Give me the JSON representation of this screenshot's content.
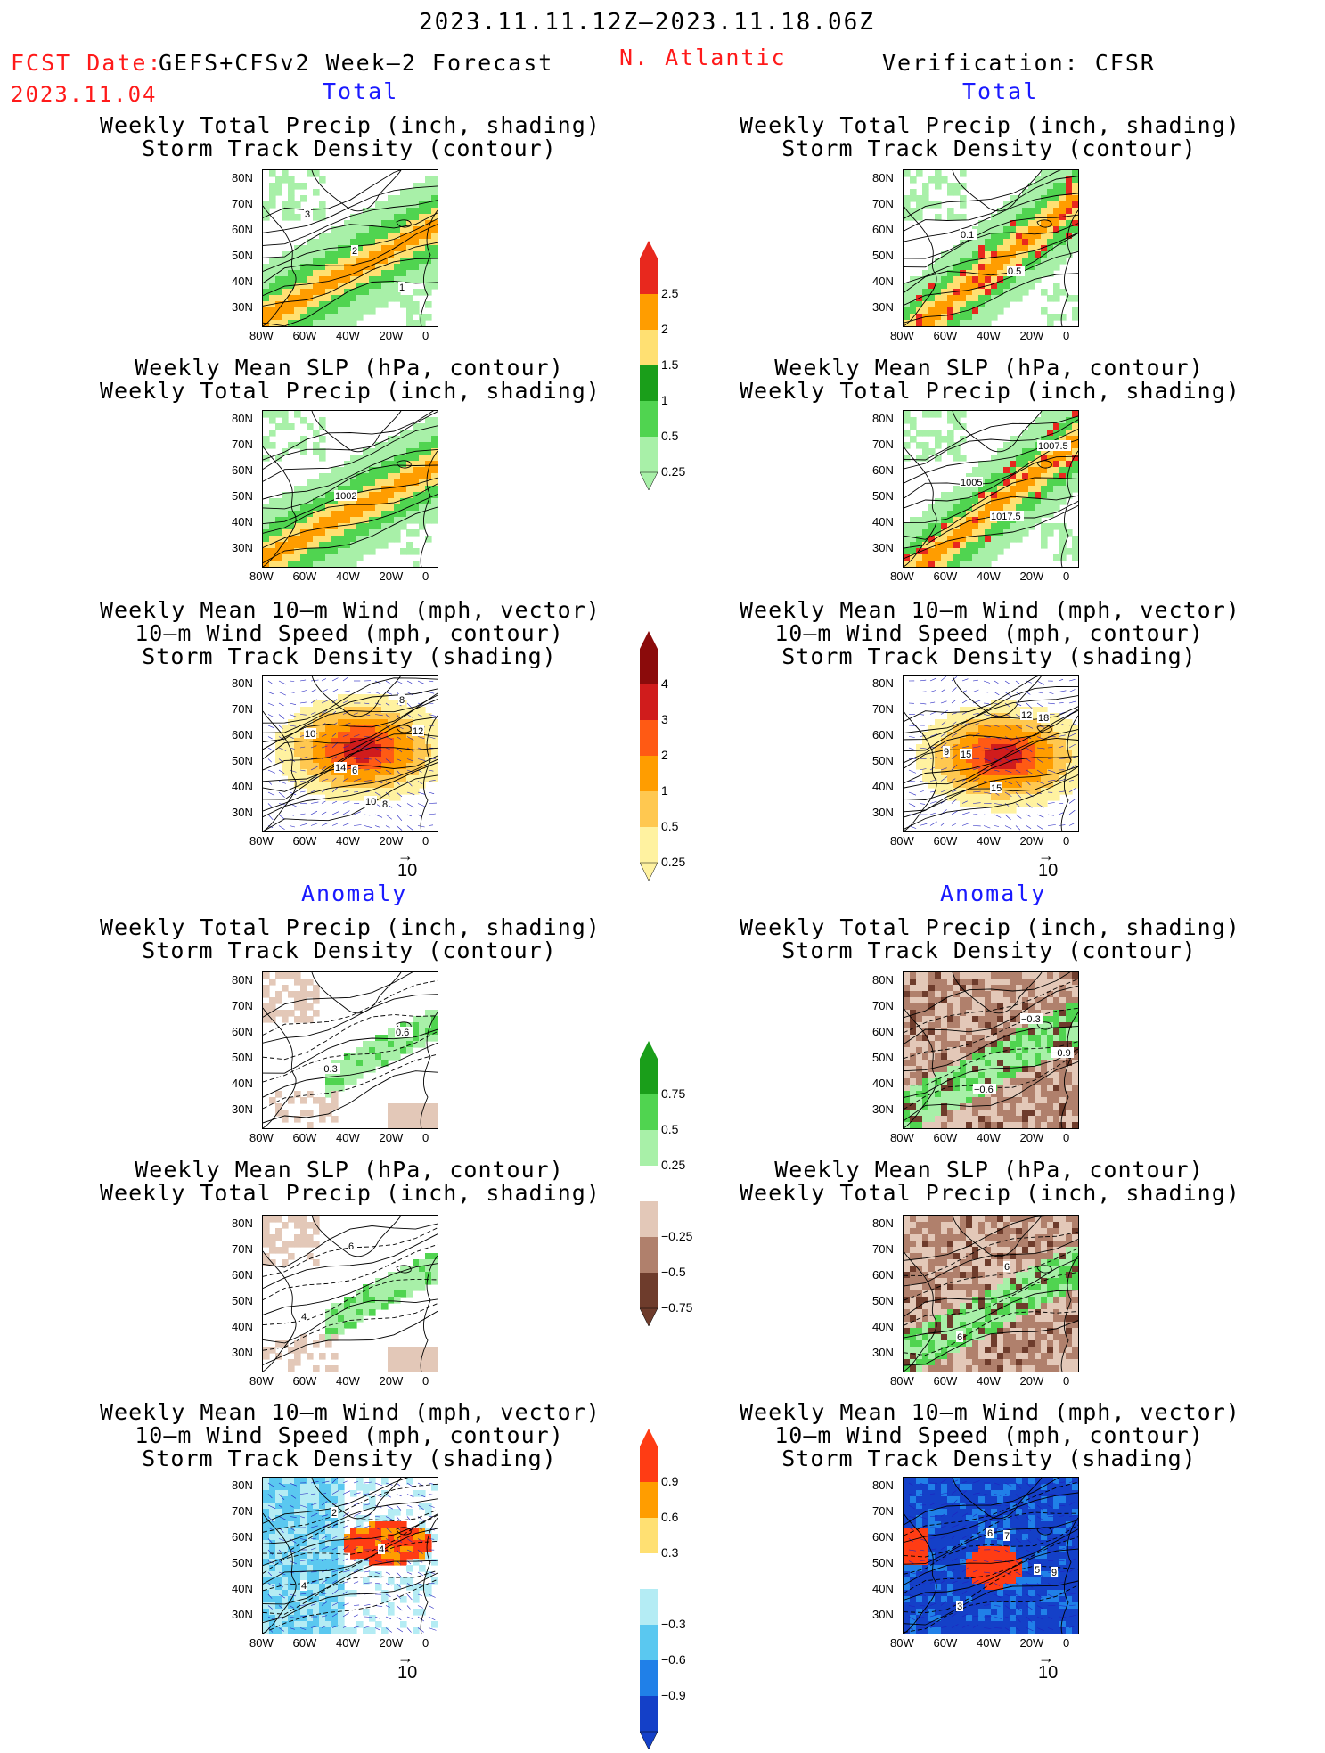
{
  "header": {
    "period": "2023.11.11.12Z–2023.11.18.06Z",
    "fcst_label": "FCST Date:",
    "fcst_source": "GEFS+CFSv2 Week–2 Forecast",
    "fcst_date": "2023.11.04",
    "region": "N. Atlantic",
    "verification": "Verification: CFSR"
  },
  "sections": {
    "total": "Total",
    "anomaly": "Anomaly"
  },
  "titles": {
    "precip_std": [
      "Weekly Total Precip (inch, shading)",
      "Storm Track Density (contour)"
    ],
    "slp_precip": [
      "Weekly Mean SLP (hPa, contour)",
      "Weekly Total Precip (inch, shading)"
    ],
    "wind_std": [
      "Weekly Mean 10–m Wind (mph, vector)",
      "10–m Wind Speed (mph, contour)",
      "Storm Track Density (shading)"
    ]
  },
  "axes": {
    "lat_ticks": [
      "80N",
      "70N",
      "60N",
      "50N",
      "40N",
      "30N"
    ],
    "lon_ticks": [
      "80W",
      "60W",
      "40W",
      "20W",
      "0"
    ]
  },
  "vector_ref": "10",
  "colorbars": {
    "precip_total": {
      "labels": [
        "2.5",
        "2",
        "1.5",
        "1",
        "0.5",
        "0.25"
      ],
      "colors": [
        "#e8281e",
        "#ff9d00",
        "#ffe072",
        "#1a9e1a",
        "#50d450",
        "#a8f0a8"
      ]
    },
    "std_total": {
      "labels": [
        "4",
        "3",
        "2",
        "1",
        "0.5",
        "0.25"
      ],
      "colors": [
        "#8b0b0b",
        "#d01c1c",
        "#ff5a14",
        "#ff9d00",
        "#ffc850",
        "#fff2a0"
      ]
    },
    "precip_anom": {
      "labels": [
        "0.75",
        "0.5",
        "0.25",
        "−0.25",
        "−0.5",
        "−0.75"
      ],
      "colors": [
        "#1a9e1a",
        "#50d450",
        "#a8f0a8",
        "#ffffff",
        "#e3c8b8",
        "#b0806c",
        "#6e3c2c"
      ]
    },
    "std_anom": {
      "labels": [
        "0.9",
        "0.6",
        "0.3",
        "−0.3",
        "−0.6",
        "−0.9"
      ],
      "colors": [
        "#ff3c14",
        "#ff9d00",
        "#ffe072",
        "#ffffff",
        "#b4ecf4",
        "#5ac8f0",
        "#2080e8",
        "#1440c8"
      ]
    }
  },
  "contour_labels": {
    "f_precip": [
      "3",
      "2",
      "1"
    ],
    "f_slp": [
      "1002"
    ],
    "f_wind": [
      "10",
      "12",
      "14",
      "8",
      "10",
      "6",
      "8"
    ],
    "v_precip": [
      "0.1",
      "0.5"
    ],
    "v_slp": [
      "1017.5",
      "1007.5",
      "1005"
    ],
    "v_wind": [
      "12",
      "9",
      "15",
      "18",
      "15"
    ],
    "fa_precip": [
      "0.6",
      "−0.3"
    ],
    "fa_slp": [
      "4",
      "6"
    ],
    "fa_wind": [
      "2",
      "4",
      "4"
    ],
    "va_precip": [
      "−0.9",
      "−0.6",
      "−0.3"
    ],
    "va_slp": [
      "6",
      "6"
    ],
    "va_wind": [
      "6",
      "5",
      "3",
      "7",
      "9"
    ]
  }
}
